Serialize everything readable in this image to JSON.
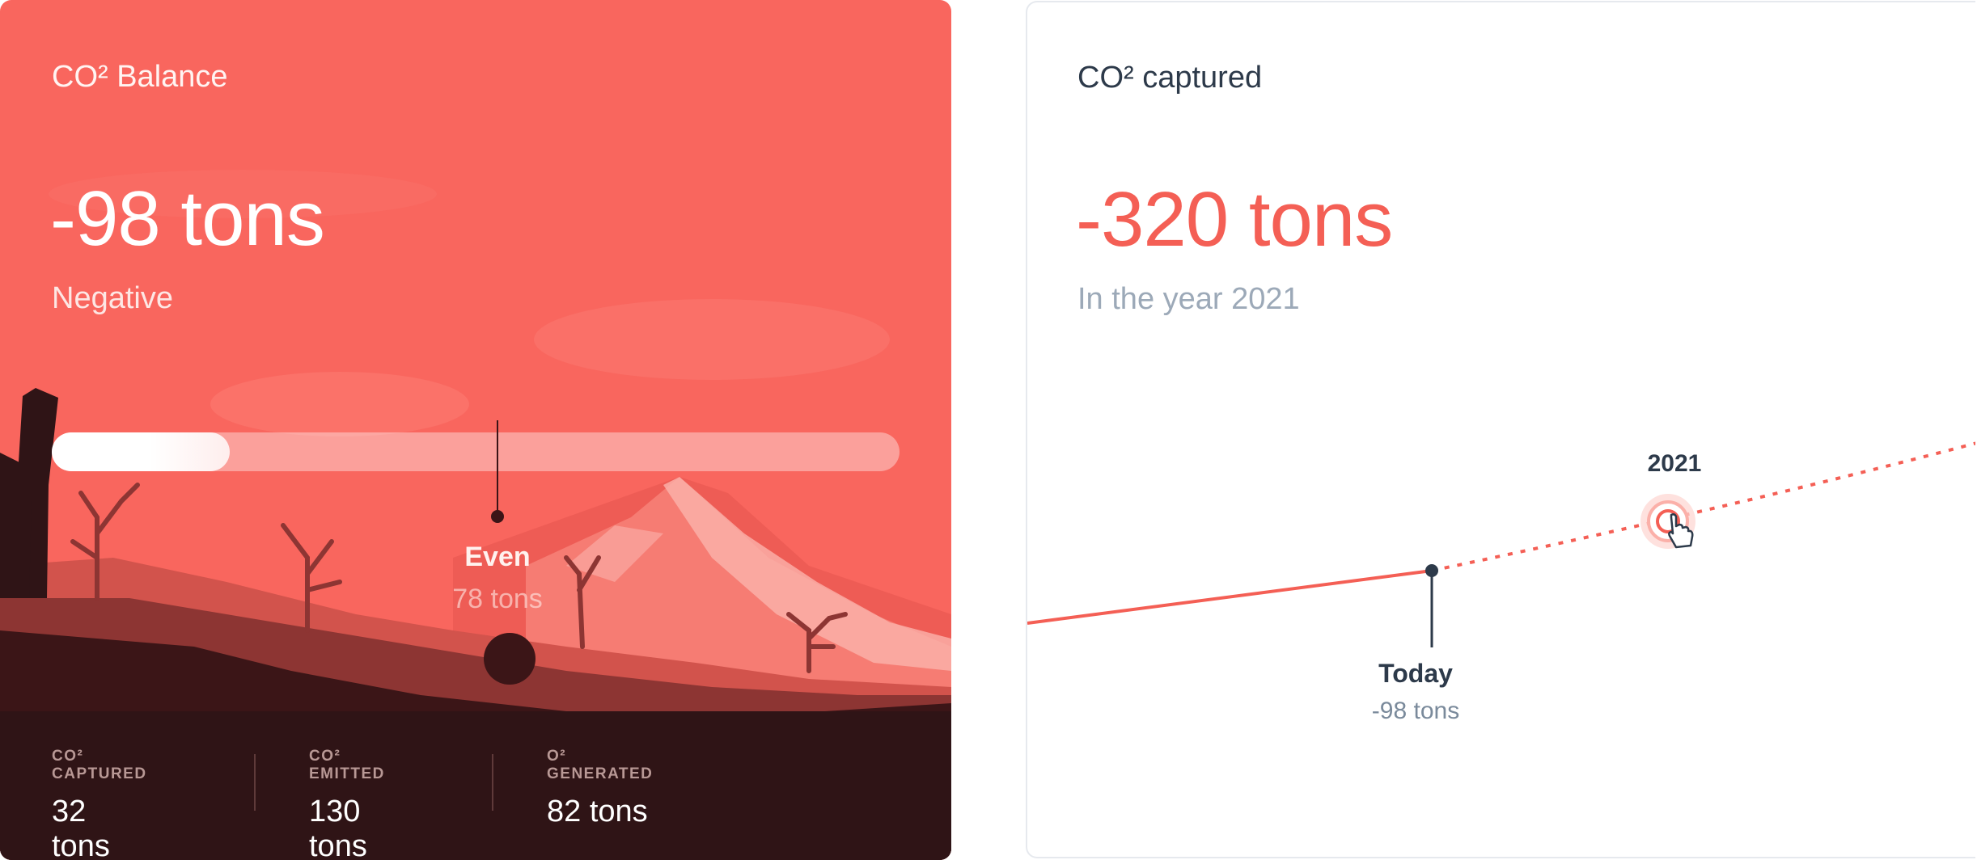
{
  "balance_card": {
    "title": "CO² Balance",
    "value": "-98 tons",
    "status": "Negative",
    "progress_fraction": 0.21,
    "marker": {
      "label": "Even",
      "value": "78 tons"
    },
    "stats": [
      {
        "label": "CO² CAPTURED",
        "value": "32 tons"
      },
      {
        "label": "CO² EMITTED",
        "value": "130 tons"
      },
      {
        "label": "O² GENERATED",
        "value": "82 tons"
      }
    ]
  },
  "captured_card": {
    "title": "CO² captured",
    "value": "-320 tons",
    "subtitle": "In the year 2021",
    "timeline": {
      "today": {
        "label": "Today",
        "value": "-98 tons"
      },
      "selected_year": "2021"
    }
  },
  "colors": {
    "accent": "#f9665e",
    "dark": "#2f1416",
    "text_dark": "#2d3a4a",
    "text_muted": "#9ca9b8"
  }
}
